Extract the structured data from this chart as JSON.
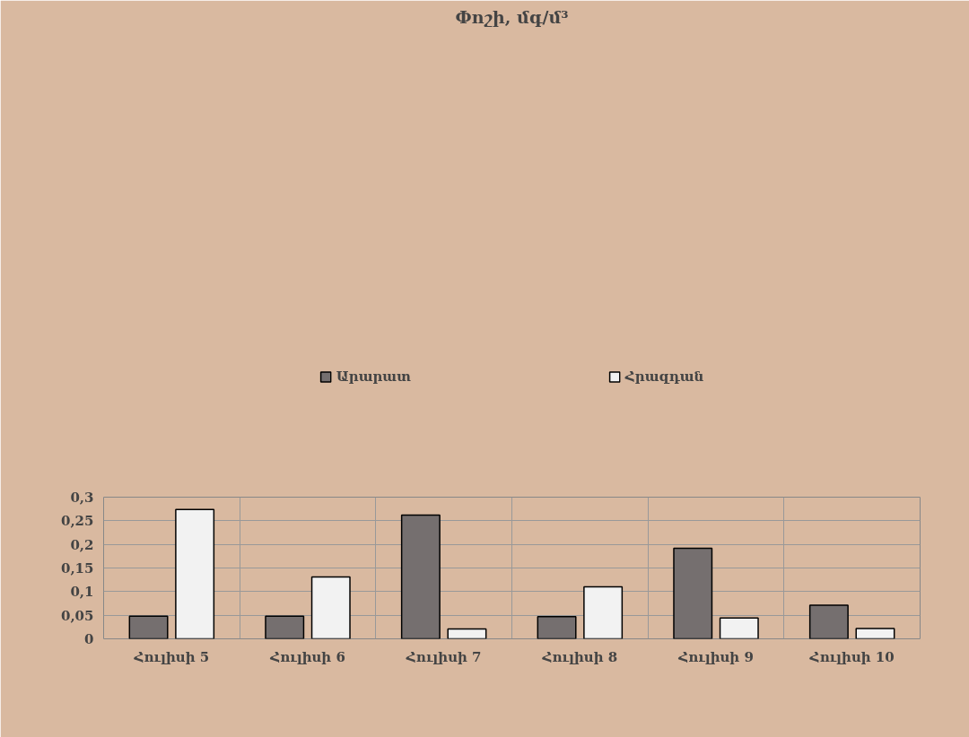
{
  "chart_data": {
    "type": "bar",
    "title": "Փոշի, մգ/մ³",
    "categories": [
      "Հուլիսի 5",
      "Հուլիսի 6",
      "Հուլիսի 7",
      "Հուլիսի 8",
      "Հուլիսի 9",
      "Հուլիսի 10"
    ],
    "series": [
      {
        "name": "Արարատ",
        "color": "#756f6f",
        "values": [
          0.048,
          0.048,
          0.262,
          0.047,
          0.192,
          0.071
        ]
      },
      {
        "name": "Հրազդան",
        "color": "#f2f2f2",
        "values": [
          0.274,
          0.131,
          0.021,
          0.11,
          0.044,
          0.022
        ]
      }
    ],
    "ylim": [
      0,
      0.3
    ],
    "yticks": [
      {
        "value": 0,
        "label": "0"
      },
      {
        "value": 0.05,
        "label": "0,05"
      },
      {
        "value": 0.1,
        "label": "0,1"
      },
      {
        "value": 0.15,
        "label": "0,15"
      },
      {
        "value": 0.2,
        "label": "0,2"
      },
      {
        "value": 0.25,
        "label": "0,25"
      },
      {
        "value": 0.3,
        "label": "0,3"
      }
    ],
    "grid": true,
    "legend": "top"
  }
}
